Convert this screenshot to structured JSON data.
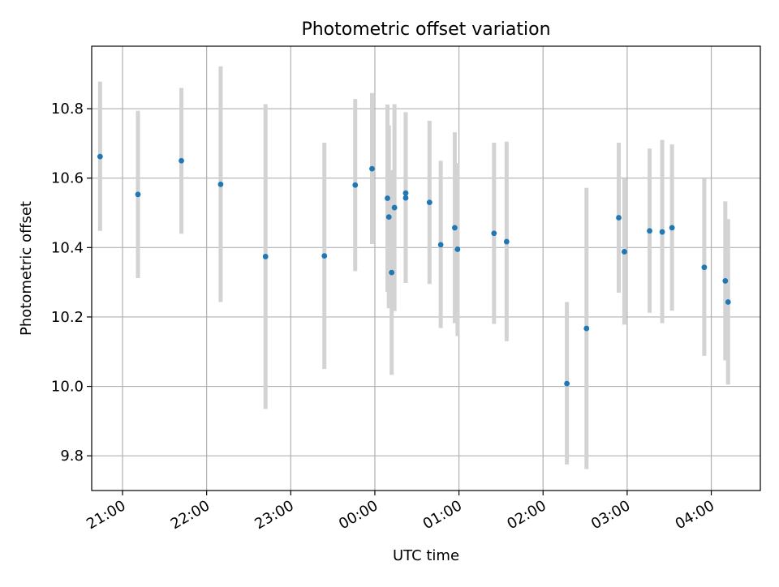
{
  "chart_data": {
    "type": "scatter",
    "title": "Photometric offset variation",
    "xlabel": "UTC time",
    "ylabel": "Photometric offset",
    "x_tick_labels": [
      "21:00",
      "22:00",
      "23:00",
      "00:00",
      "01:00",
      "02:00",
      "03:00",
      "04:00"
    ],
    "y_tick_labels": [
      "9.8",
      "10.0",
      "10.2",
      "10.4",
      "10.6",
      "10.8"
    ],
    "y_ticks": [
      9.8,
      10.0,
      10.2,
      10.4,
      10.6,
      10.8
    ],
    "xlim": [
      "20:38",
      "04:35"
    ],
    "ylim": [
      9.7,
      10.98
    ],
    "grid": true,
    "colors": {
      "marker": "#1f77b4",
      "errorbar": "#d3d3d3",
      "grid": "#b0b0b0"
    },
    "points": [
      {
        "x": "20:44",
        "y": 10.662,
        "ylow": 10.448,
        "yhigh": 10.878
      },
      {
        "x": "21:11",
        "y": 10.553,
        "ylow": 10.312,
        "yhigh": 10.794
      },
      {
        "x": "21:42",
        "y": 10.65,
        "ylow": 10.44,
        "yhigh": 10.86
      },
      {
        "x": "22:10",
        "y": 10.582,
        "ylow": 10.243,
        "yhigh": 10.922
      },
      {
        "x": "22:42",
        "y": 10.374,
        "ylow": 9.935,
        "yhigh": 10.813
      },
      {
        "x": "23:24",
        "y": 10.376,
        "ylow": 10.05,
        "yhigh": 10.702
      },
      {
        "x": "23:46",
        "y": 10.58,
        "ylow": 10.332,
        "yhigh": 10.828
      },
      {
        "x": "23:58",
        "y": 10.627,
        "ylow": 10.41,
        "yhigh": 10.845
      },
      {
        "x": "00:09",
        "y": 10.542,
        "ylow": 10.272,
        "yhigh": 10.812
      },
      {
        "x": "00:10",
        "y": 10.488,
        "ylow": 10.225,
        "yhigh": 10.752
      },
      {
        "x": "00:12",
        "y": 10.328,
        "ylow": 10.033,
        "yhigh": 10.623
      },
      {
        "x": "00:14",
        "y": 10.515,
        "ylow": 10.217,
        "yhigh": 10.813
      },
      {
        "x": "00:22",
        "y": 10.557,
        "ylow": 10.33,
        "yhigh": 10.79
      },
      {
        "x": "00:22",
        "y": 10.543,
        "ylow": 10.298,
        "yhigh": 10.788
      },
      {
        "x": "00:39",
        "y": 10.53,
        "ylow": 10.295,
        "yhigh": 10.765
      },
      {
        "x": "00:47",
        "y": 10.408,
        "ylow": 10.168,
        "yhigh": 10.65
      },
      {
        "x": "00:57",
        "y": 10.457,
        "ylow": 10.182,
        "yhigh": 10.732
      },
      {
        "x": "00:59",
        "y": 10.395,
        "ylow": 10.145,
        "yhigh": 10.643
      },
      {
        "x": "01:25",
        "y": 10.441,
        "ylow": 10.18,
        "yhigh": 10.702
      },
      {
        "x": "01:34",
        "y": 10.417,
        "ylow": 10.13,
        "yhigh": 10.705
      },
      {
        "x": "02:17",
        "y": 10.008,
        "ylow": 9.775,
        "yhigh": 10.243
      },
      {
        "x": "02:31",
        "y": 10.167,
        "ylow": 9.762,
        "yhigh": 10.572
      },
      {
        "x": "02:54",
        "y": 10.486,
        "ylow": 10.27,
        "yhigh": 10.702
      },
      {
        "x": "02:58",
        "y": 10.388,
        "ylow": 10.178,
        "yhigh": 10.598
      },
      {
        "x": "03:16",
        "y": 10.448,
        "ylow": 10.212,
        "yhigh": 10.685
      },
      {
        "x": "03:25",
        "y": 10.445,
        "ylow": 10.182,
        "yhigh": 10.71
      },
      {
        "x": "03:32",
        "y": 10.457,
        "ylow": 10.218,
        "yhigh": 10.697
      },
      {
        "x": "03:55",
        "y": 10.343,
        "ylow": 10.088,
        "yhigh": 10.598
      },
      {
        "x": "04:10",
        "y": 10.304,
        "ylow": 10.075,
        "yhigh": 10.533
      },
      {
        "x": "04:12",
        "y": 10.243,
        "ylow": 10.005,
        "yhigh": 10.482
      }
    ]
  }
}
